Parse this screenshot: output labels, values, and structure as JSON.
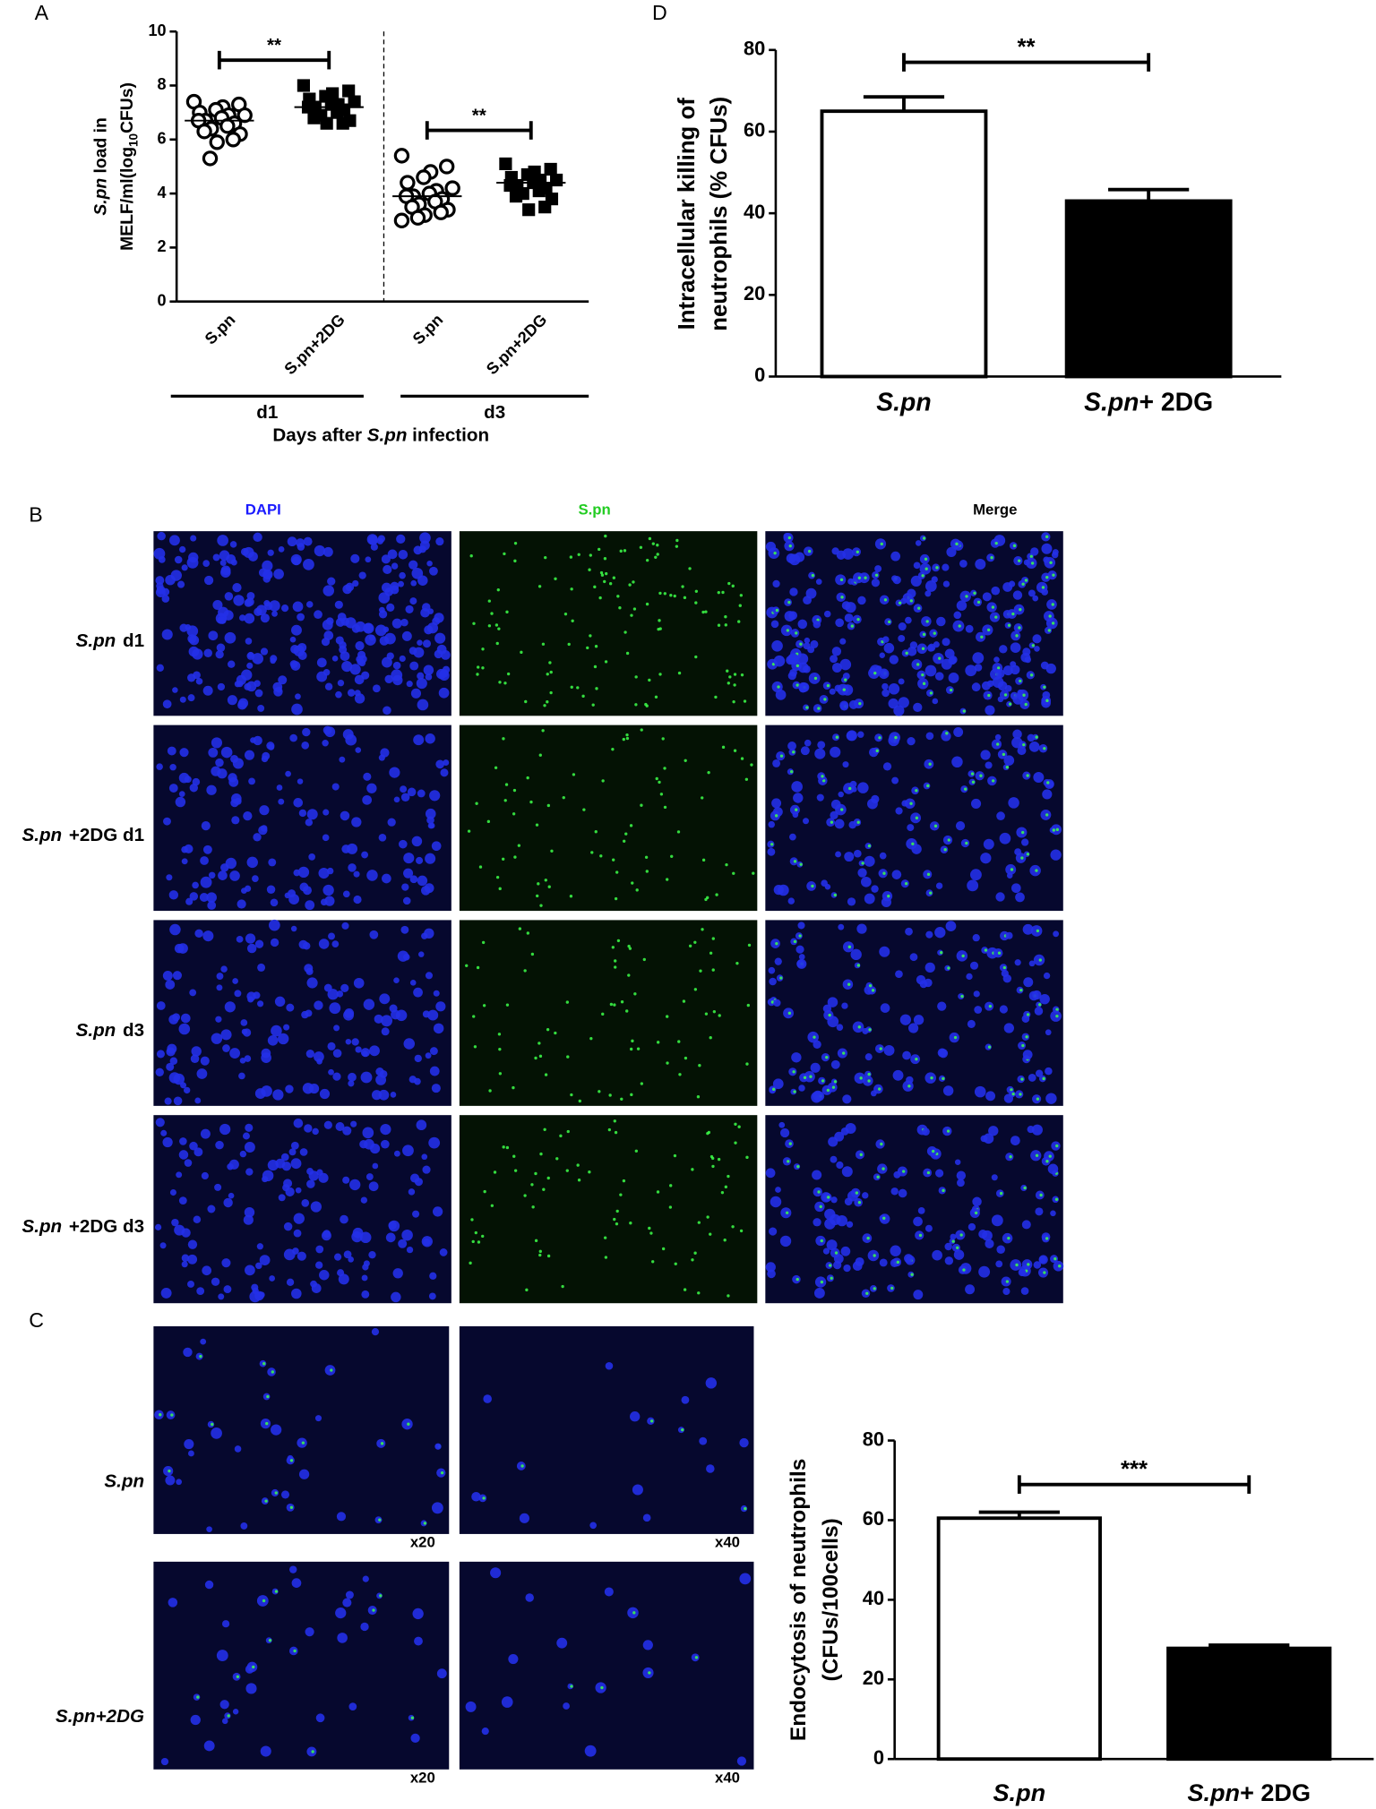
{
  "panel_labels": {
    "a": "A",
    "b": "B",
    "c": "C",
    "d": "D"
  },
  "chart_data": [
    {
      "type": "dotplot",
      "ylabel": [
        [
          "S.pn",
          " load in"
        ],
        [
          "MELF/ml(log",
          "10",
          "CFUs)"
        ]
      ],
      "categories": [
        "S.pn",
        "S.pn+2DG",
        "S.pn",
        "S.pn+2DG"
      ],
      "groups": [
        {
          "label": "d1",
          "categories": [
            0,
            1
          ]
        },
        {
          "label": "d3",
          "categories": [
            2,
            3
          ]
        }
      ],
      "xlabel": [
        "Days after ",
        "S.pn",
        " infection"
      ],
      "points": [
        {
          "marker": "open-circle",
          "color": "#000000",
          "mean": 6.7,
          "values": [
            7.4,
            7.3,
            7.2,
            7.1,
            7.0,
            6.9,
            6.9,
            6.8,
            6.7,
            6.7,
            6.6,
            6.5,
            6.4,
            6.3,
            6.2,
            6.0,
            5.9,
            5.3
          ]
        },
        {
          "marker": "filled-square",
          "color": "#000000",
          "mean": 7.2,
          "values": [
            8.0,
            7.8,
            7.7,
            7.6,
            7.5,
            7.4,
            7.3,
            7.3,
            7.2,
            7.2,
            7.1,
            7.0,
            6.9,
            6.8,
            6.7,
            6.6,
            6.6
          ]
        },
        {
          "marker": "open-circle",
          "color": "#000000",
          "mean": 3.9,
          "values": [
            5.4,
            5.0,
            4.8,
            4.6,
            4.4,
            4.2,
            4.1,
            4.0,
            3.9,
            3.9,
            3.8,
            3.7,
            3.6,
            3.5,
            3.4,
            3.3,
            3.2,
            3.1,
            3.0
          ]
        },
        {
          "marker": "filled-square",
          "color": "#000000",
          "mean": 4.4,
          "values": [
            5.1,
            4.9,
            4.8,
            4.7,
            4.6,
            4.5,
            4.5,
            4.4,
            4.3,
            4.3,
            4.2,
            4.1,
            4.0,
            3.9,
            3.8,
            3.5,
            3.4
          ]
        }
      ],
      "significance": [
        {
          "text": "**",
          "between": [
            0,
            1
          ]
        },
        {
          "text": "**",
          "between": [
            2,
            3
          ]
        }
      ],
      "ylim": [
        0,
        10
      ],
      "yticks": [
        0,
        2,
        4,
        6,
        8,
        10
      ],
      "divider": true
    },
    {
      "type": "bar",
      "ylabel": [
        [
          "Intracellular killing of"
        ],
        [
          "neutrophils (% CFUs)"
        ]
      ],
      "categories": [
        "S.pn",
        "S.pn+ 2DG"
      ],
      "values": [
        65,
        43
      ],
      "errors": [
        3.5,
        2.8
      ],
      "colors": [
        "#ffffff",
        "#000000"
      ],
      "edgecolor": "#000000",
      "significance": [
        {
          "text": "**",
          "between": [
            0,
            1
          ]
        }
      ],
      "ylim": [
        0,
        80
      ],
      "yticks": [
        0,
        20,
        40,
        60,
        80
      ]
    },
    {
      "type": "bar",
      "ylabel": [
        [
          "Endocytosis of neutrophils"
        ],
        [
          "(CFUs/100cells)"
        ]
      ],
      "categories": [
        "S.pn",
        "S.pn+ 2DG"
      ],
      "values": [
        60.5,
        27.8
      ],
      "errors": [
        1.5,
        0.8
      ],
      "colors": [
        "#ffffff",
        "#000000"
      ],
      "edgecolor": "#000000",
      "significance": [
        {
          "text": "***",
          "between": [
            0,
            1
          ]
        }
      ],
      "ylim": [
        0,
        80
      ],
      "yticks": [
        0,
        20,
        40,
        60,
        80
      ]
    }
  ],
  "microscopy": {
    "b": {
      "columns": [
        "DAPI",
        "S.pn",
        "Merge"
      ],
      "rows": [
        [
          "S.pn",
          "d1"
        ],
        [
          "S.pn",
          "+2DG d1"
        ],
        [
          "S.pn",
          "d3"
        ],
        [
          "S.pn",
          "+2DG d3"
        ]
      ]
    },
    "c": {
      "rows": [
        "S.pn",
        "S.pn+2DG"
      ],
      "magnifications": [
        "x20",
        "x40"
      ]
    }
  }
}
